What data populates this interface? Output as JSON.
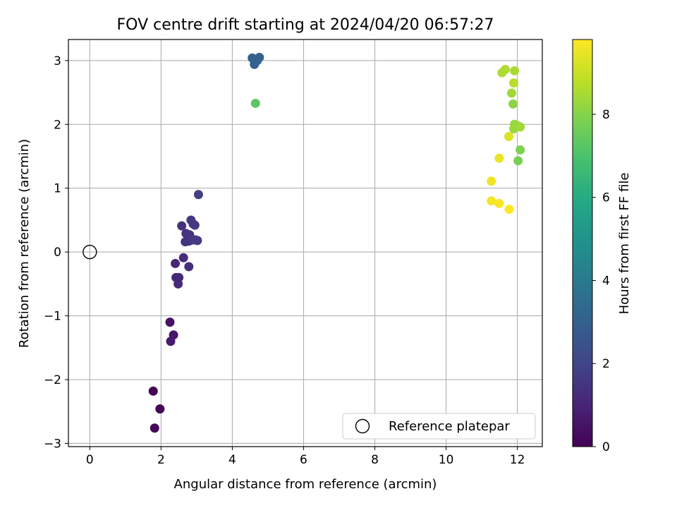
{
  "chart_data": {
    "type": "scatter",
    "title": "FOV centre drift starting at 2024/04/20 06:57:27",
    "xlabel": "Angular distance from reference (arcmin)",
    "ylabel": "Rotation from reference (arcmin)",
    "xlim": [
      -0.6,
      12.7
    ],
    "ylim": [
      -3.05,
      3.33
    ],
    "xticks": [
      0,
      2,
      4,
      6,
      8,
      10,
      12
    ],
    "yticks": [
      -3,
      -2,
      -1,
      0,
      1,
      2,
      3
    ],
    "xtick_labels": [
      "0",
      "2",
      "4",
      "6",
      "8",
      "10",
      "12"
    ],
    "ytick_labels": [
      "−3",
      "−2",
      "−1",
      "0",
      "1",
      "2",
      "3"
    ],
    "grid": true,
    "colormap": "viridis",
    "colorbar": {
      "label": "Hours from first FF file",
      "range": [
        0,
        9.8
      ],
      "ticks": [
        0,
        2,
        4,
        6,
        8
      ],
      "tick_labels": [
        "0",
        "2",
        "4",
        "6",
        "8"
      ]
    },
    "legend": {
      "position": "lower right",
      "entries": [
        "Reference platepar"
      ]
    },
    "reference_point": {
      "x": 0,
      "y": 0,
      "marker": "open-circle"
    },
    "points": [
      {
        "x": 1.78,
        "y": -2.18,
        "hours": 0.0
      },
      {
        "x": 1.97,
        "y": -2.46,
        "hours": 0.1
      },
      {
        "x": 1.82,
        "y": -2.76,
        "hours": 0.2
      },
      {
        "x": 2.25,
        "y": -1.1,
        "hours": 0.5
      },
      {
        "x": 2.35,
        "y": -1.3,
        "hours": 0.6
      },
      {
        "x": 2.27,
        "y": -1.4,
        "hours": 0.7
      },
      {
        "x": 2.4,
        "y": -0.18,
        "hours": 1.0
      },
      {
        "x": 2.42,
        "y": -0.4,
        "hours": 1.1
      },
      {
        "x": 2.5,
        "y": -0.4,
        "hours": 1.1
      },
      {
        "x": 2.48,
        "y": -0.5,
        "hours": 1.2
      },
      {
        "x": 2.63,
        "y": -0.09,
        "hours": 1.3
      },
      {
        "x": 2.78,
        "y": -0.23,
        "hours": 1.3
      },
      {
        "x": 2.58,
        "y": 0.41,
        "hours": 1.4
      },
      {
        "x": 2.7,
        "y": 0.29,
        "hours": 1.4
      },
      {
        "x": 2.68,
        "y": 0.16,
        "hours": 1.5
      },
      {
        "x": 2.78,
        "y": 0.17,
        "hours": 1.5
      },
      {
        "x": 2.8,
        "y": 0.27,
        "hours": 1.5
      },
      {
        "x": 2.84,
        "y": 0.5,
        "hours": 1.6
      },
      {
        "x": 2.9,
        "y": 0.44,
        "hours": 1.6
      },
      {
        "x": 2.95,
        "y": 0.42,
        "hours": 1.6
      },
      {
        "x": 2.9,
        "y": 0.19,
        "hours": 1.6
      },
      {
        "x": 2.96,
        "y": 0.19,
        "hours": 1.7
      },
      {
        "x": 3.02,
        "y": 0.18,
        "hours": 1.7
      },
      {
        "x": 3.05,
        "y": 0.9,
        "hours": 1.8
      },
      {
        "x": 4.56,
        "y": 3.04,
        "hours": 3.0
      },
      {
        "x": 4.62,
        "y": 2.94,
        "hours": 3.0
      },
      {
        "x": 4.7,
        "y": 3.0,
        "hours": 3.1
      },
      {
        "x": 4.76,
        "y": 3.05,
        "hours": 3.1
      },
      {
        "x": 4.65,
        "y": 2.33,
        "hours": 7.3
      },
      {
        "x": 11.57,
        "y": 2.81,
        "hours": 8.6
      },
      {
        "x": 11.66,
        "y": 2.86,
        "hours": 8.6
      },
      {
        "x": 11.92,
        "y": 2.84,
        "hours": 8.5
      },
      {
        "x": 11.9,
        "y": 2.65,
        "hours": 8.7
      },
      {
        "x": 11.84,
        "y": 2.49,
        "hours": 8.4
      },
      {
        "x": 11.88,
        "y": 2.32,
        "hours": 8.1
      },
      {
        "x": 11.92,
        "y": 2.0,
        "hours": 8.2
      },
      {
        "x": 11.9,
        "y": 1.93,
        "hours": 8.3
      },
      {
        "x": 12.0,
        "y": 1.98,
        "hours": 8.3
      },
      {
        "x": 12.08,
        "y": 1.96,
        "hours": 8.4
      },
      {
        "x": 12.08,
        "y": 1.6,
        "hours": 7.9
      },
      {
        "x": 12.02,
        "y": 1.43,
        "hours": 7.8
      },
      {
        "x": 11.76,
        "y": 1.81,
        "hours": 9.3
      },
      {
        "x": 11.49,
        "y": 1.47,
        "hours": 9.5
      },
      {
        "x": 11.27,
        "y": 1.11,
        "hours": 9.6
      },
      {
        "x": 11.27,
        "y": 0.8,
        "hours": 9.7
      },
      {
        "x": 11.49,
        "y": 0.76,
        "hours": 9.7
      },
      {
        "x": 11.77,
        "y": 0.67,
        "hours": 9.8
      }
    ]
  }
}
